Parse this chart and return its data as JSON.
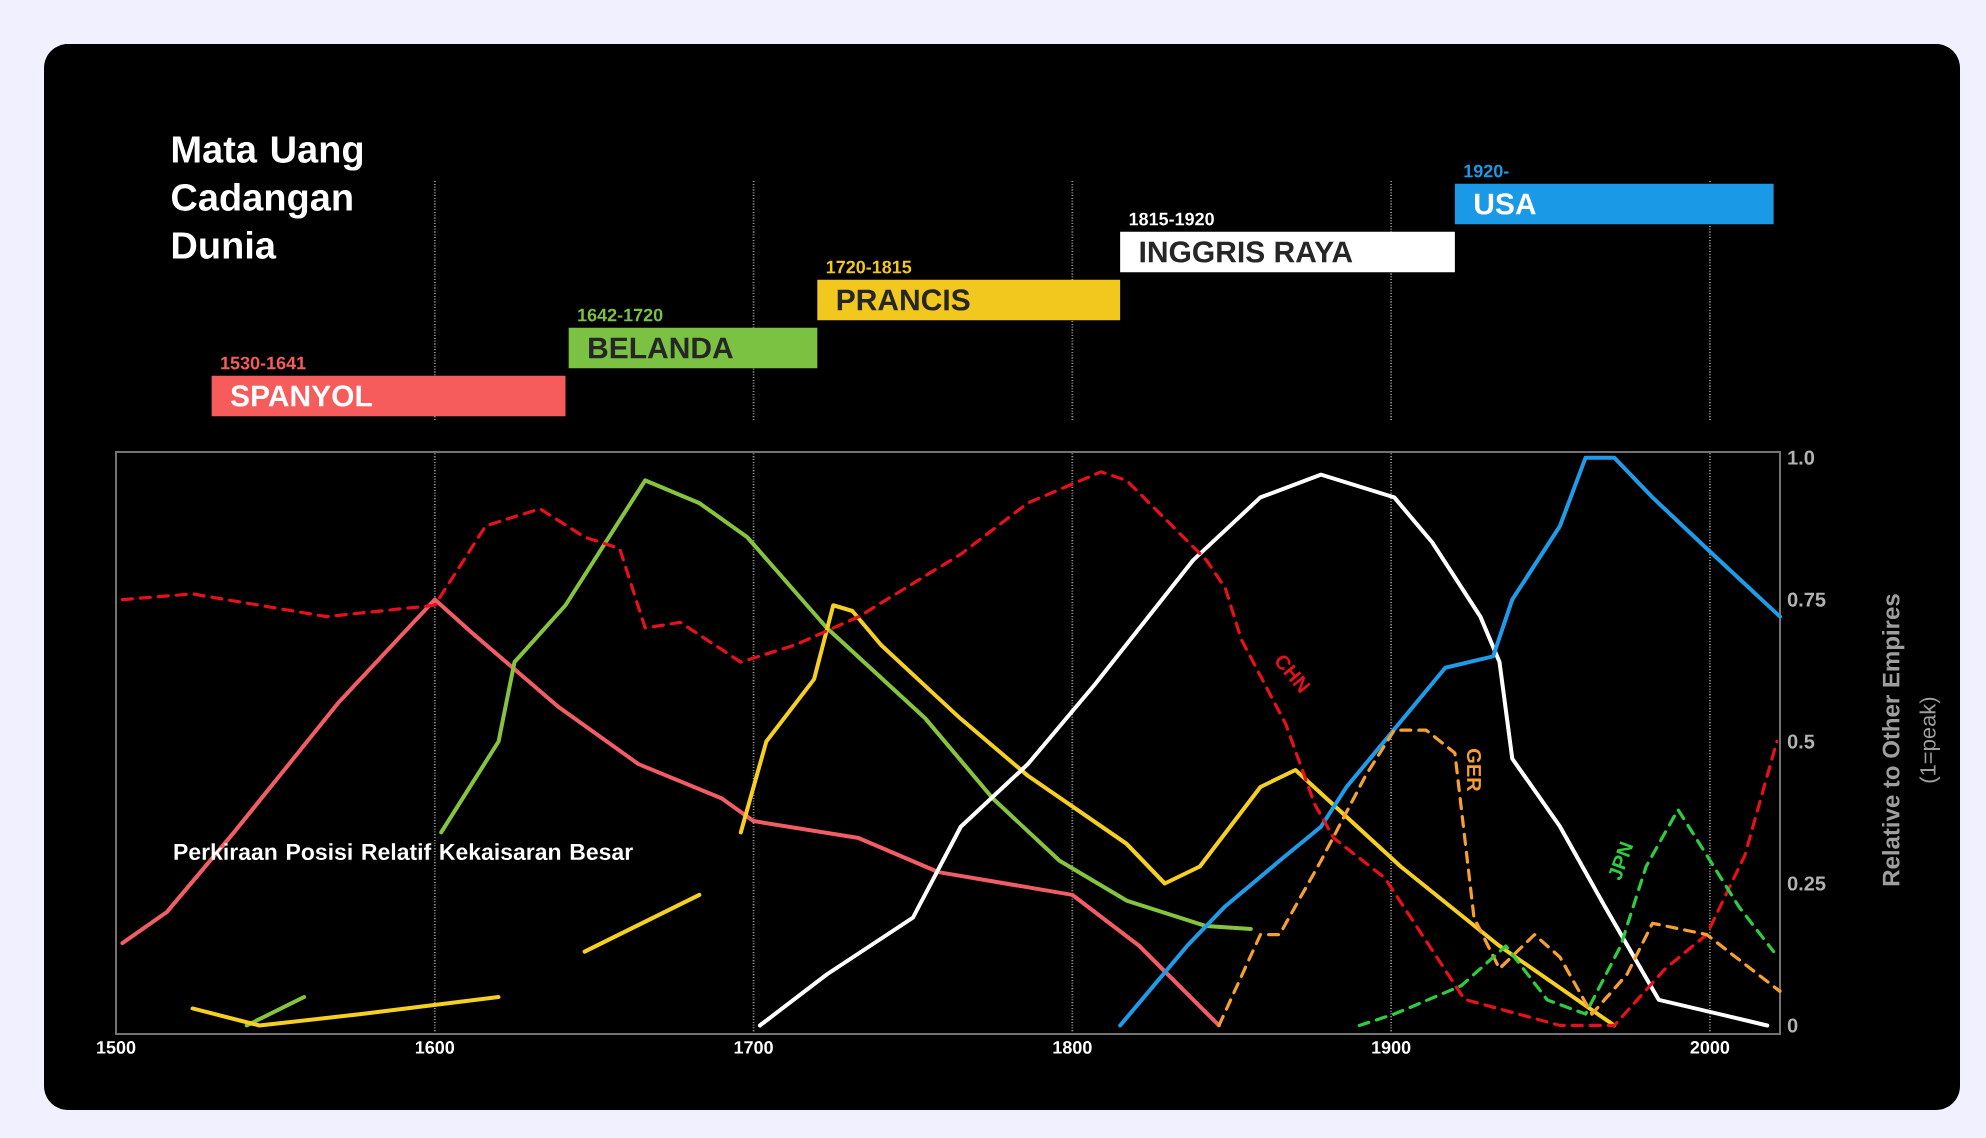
{
  "chart_data": [
    {
      "type": "bar",
      "orientation": "horizontal",
      "title": "Mata Uang Cadangan Dunia",
      "categories": [
        "USA",
        "INGGRIS RAYA",
        "PRANCIS",
        "BELANDA",
        "SPANYOL"
      ],
      "base": [
        1920,
        1815,
        1720,
        1642,
        1530
      ],
      "values": [
        100,
        105,
        95,
        78,
        111
      ],
      "colors": [
        "#1a9ae6",
        "#ffffff",
        "#f2c81f",
        "#7cc242",
        "#f75c5c"
      ],
      "annotations": [
        {
          "text": "1920-",
          "x": 1920,
          "y": "USA"
        },
        {
          "text": "1815-1920",
          "x": 1815,
          "y": "INGGRIS RAYA"
        },
        {
          "text": "1720-1815",
          "x": 1720,
          "y": "PRANCIS"
        },
        {
          "text": "1642-1720",
          "x": 1642,
          "y": "BELANDA"
        },
        {
          "text": "1530-1641",
          "x": 1530,
          "y": "SPANYOL"
        }
      ],
      "xlim": [
        1500,
        2022
      ],
      "xticks": [
        1600,
        1700,
        1800,
        1900,
        2000
      ],
      "grid": "x",
      "tick_labels": false
    },
    {
      "type": "line",
      "ylabel": "Relative to Other Empires",
      "annotations": [
        "(1=peak)",
        "Perkiraan Posisi Relatif Kekaisaran Besar"
      ],
      "xlim": [
        1500,
        2022
      ],
      "xticks": [
        1500,
        1600,
        1700,
        1800,
        1900,
        2000
      ],
      "ylim": [
        -0.015,
        1.01
      ],
      "yticks": [
        0,
        0.25,
        0.5,
        0.75,
        {
          "value": 1,
          "label": "1.0"
        }
      ],
      "grid": "x",
      "series": [
        {
          "color": "#f25c64",
          "x": [
            1502,
            1516,
            1537,
            1570,
            1600,
            1612,
            1639,
            1664,
            1690,
            1700,
            1733,
            1758,
            1800,
            1821,
            1846
          ],
          "values": [
            0.145,
            0.2,
            0.34,
            0.57,
            0.75,
            0.69,
            0.56,
            0.46,
            0.4,
            0.36,
            0.33,
            0.27,
            0.23,
            0.14,
            0.0
          ]
        },
        {
          "color": "#86c440",
          "x": [
            1541,
            1559,
            1580,
            1602,
            1620,
            1625,
            1641,
            1666,
            1683,
            1698,
            1723,
            1754,
            1775,
            1796,
            1817,
            1842,
            1856
          ],
          "values": [
            0.0,
            0.05,
            null,
            0.34,
            0.5,
            0.64,
            0.74,
            0.96,
            0.92,
            0.86,
            0.7,
            0.54,
            0.4,
            0.29,
            0.22,
            0.175,
            0.17
          ]
        },
        {
          "color": "#f5d020",
          "x": [
            1524,
            1545,
            1577,
            1620,
            1635,
            1647,
            1683,
            1690,
            1696,
            1704,
            1719,
            1725,
            1731,
            1740,
            1765,
            1786,
            1817,
            1829,
            1840,
            1859,
            1870,
            1903,
            1934,
            1970
          ],
          "values": [
            0.03,
            0.0,
            0.02,
            0.05,
            null,
            0.13,
            0.23,
            null,
            0.34,
            0.5,
            0.61,
            0.74,
            0.73,
            0.67,
            0.54,
            0.44,
            0.32,
            0.25,
            0.28,
            0.42,
            0.45,
            0.28,
            0.14,
            0.0
          ]
        },
        {
          "color": "#ffffff",
          "x": [
            1702,
            1723,
            1750,
            1765,
            1786,
            1807,
            1838,
            1859,
            1878,
            1901,
            1913,
            1928,
            1934,
            1938,
            1953,
            1967,
            1984,
            2003,
            2018
          ],
          "values": [
            0.0,
            0.09,
            0.19,
            0.35,
            0.46,
            0.6,
            0.82,
            0.93,
            0.97,
            0.93,
            0.85,
            0.72,
            0.64,
            0.47,
            0.35,
            0.21,
            0.045,
            0.02,
            0.0
          ]
        },
        {
          "color": "#1e9be9",
          "x": [
            1815,
            1836,
            1848,
            1865,
            1878,
            1886,
            1917,
            1932,
            1938,
            1953,
            1961,
            1970,
            1982,
            1999,
            2022
          ],
          "values": [
            0.0,
            0.14,
            0.21,
            0.29,
            0.35,
            0.42,
            0.63,
            0.65,
            0.75,
            0.88,
            1.0,
            1.0,
            0.93,
            0.84,
            0.72
          ]
        },
        {
          "name": "CHN",
          "color": "#e8101a",
          "line_style": "dashed",
          "x": [
            1502,
            1524,
            1566,
            1600,
            1616,
            1633,
            1647,
            1658,
            1666,
            1677,
            1696,
            1713,
            1733,
            1765,
            1786,
            1809,
            1817,
            1842,
            1848,
            1853,
            1867,
            1876,
            1882,
            1898,
            1923,
            1953,
            1970,
            1986,
            1999,
            2011,
            2021
          ],
          "values": [
            0.75,
            0.76,
            0.72,
            0.74,
            0.88,
            0.91,
            0.86,
            0.84,
            0.7,
            0.71,
            0.64,
            0.67,
            0.72,
            0.83,
            0.92,
            0.975,
            0.96,
            0.82,
            0.77,
            0.68,
            0.53,
            0.39,
            0.33,
            0.26,
            0.046,
            0.0,
            0.0,
            0.1,
            0.16,
            0.3,
            0.5
          ]
        },
        {
          "name": "GER",
          "color": "#f5a030",
          "line_style": "dashed",
          "x": [
            1846,
            1859,
            1865,
            1878,
            1892,
            1901,
            1911,
            1920,
            1926,
            1934,
            1945,
            1953,
            1963,
            1974,
            1982,
            1999,
            2022
          ],
          "values": [
            0.0,
            0.16,
            0.16,
            0.29,
            0.44,
            0.52,
            0.52,
            0.48,
            0.19,
            0.1,
            0.16,
            0.12,
            0.02,
            0.09,
            0.18,
            0.16,
            0.06
          ]
        },
        {
          "name": "JPN",
          "color": "#2ecc40",
          "line_style": "dashed",
          "x": [
            1890,
            1901,
            1922,
            1936,
            1949,
            1961,
            1972,
            1980,
            1990,
            1999,
            2009,
            2020
          ],
          "values": [
            0.0,
            0.02,
            0.07,
            0.14,
            0.045,
            0.02,
            0.14,
            0.28,
            0.38,
            0.3,
            0.21,
            0.13
          ]
        }
      ]
    }
  ]
}
